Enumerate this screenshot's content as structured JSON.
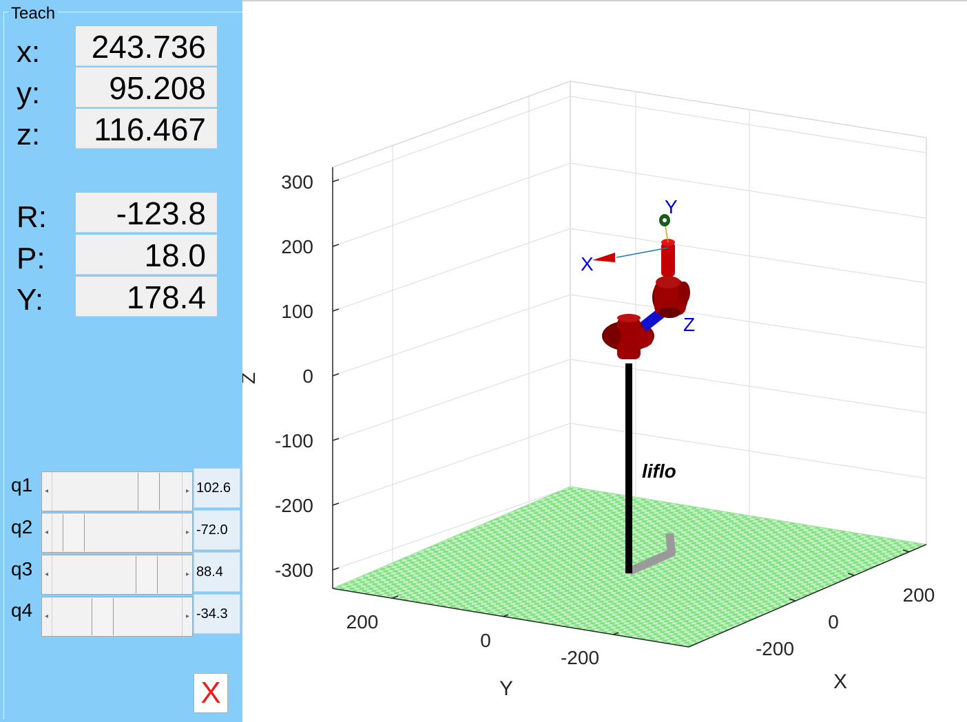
{
  "panel": {
    "title": "Teach",
    "position": [
      {
        "label": "x:",
        "value": "243.736"
      },
      {
        "label": "y:",
        "value": "95.208"
      },
      {
        "label": "z:",
        "value": "116.467"
      }
    ],
    "orientation": [
      {
        "label": "R:",
        "value": "-123.8"
      },
      {
        "label": "P:",
        "value": "18.0"
      },
      {
        "label": "Y:",
        "value": "178.4"
      }
    ],
    "joints": [
      {
        "label": "q1",
        "value": "102.6",
        "fraction": 0.78
      },
      {
        "label": "q2",
        "value": "-72.0",
        "fraction": 0.1
      },
      {
        "label": "q3",
        "value": "88.4",
        "fraction": 0.76
      },
      {
        "label": "q4",
        "value": "-34.3",
        "fraction": 0.36
      }
    ],
    "close_label": "X",
    "close_color": "#ee1c1c"
  },
  "plot": {
    "z_label": "Z",
    "y_label": "Y",
    "x_label": "X",
    "z_ticks": [
      "300",
      "200",
      "100",
      "0",
      "-100",
      "-200",
      "-300"
    ],
    "y_ticks": [
      "200",
      "0",
      "-200"
    ],
    "x_ticks": [
      "200",
      "0",
      "-200"
    ],
    "robot_name": "liflo",
    "frame_labels": {
      "x": "X",
      "y": "Y",
      "z": "Z"
    },
    "colors": {
      "link_red": "#a30000",
      "link_blue": "#1010d0",
      "floor_green": "#7ee27e",
      "axis_label_blue": "#0000dd",
      "base_bar": "#000000"
    }
  }
}
